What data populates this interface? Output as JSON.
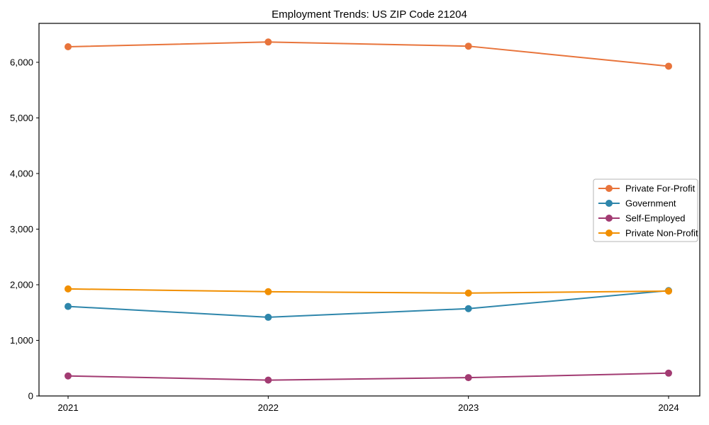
{
  "chart_data": {
    "type": "line",
    "title": "Employment Trends: US ZIP Code 21204",
    "xlabel": "",
    "ylabel": "",
    "x": [
      2021,
      2022,
      2023,
      2024
    ],
    "x_tick_labels": [
      "2021",
      "2022",
      "2023",
      "2024"
    ],
    "y_ticks": [
      0,
      1000,
      2000,
      3000,
      4000,
      5000,
      6000
    ],
    "y_tick_labels": [
      "0",
      "1,000",
      "2,000",
      "3,000",
      "4,000",
      "5,000",
      "6,000"
    ],
    "ylim": [
      0,
      6700
    ],
    "grid": false,
    "legend_position": "center-right",
    "marker": "circle",
    "series": [
      {
        "name": "Private For-Profit",
        "color": "#E8743B",
        "values": [
          6280,
          6365,
          6290,
          5930
        ]
      },
      {
        "name": "Government",
        "color": "#2E86AB",
        "values": [
          1610,
          1415,
          1570,
          1895
        ]
      },
      {
        "name": "Self-Employed",
        "color": "#A23B72",
        "values": [
          360,
          285,
          330,
          410
        ]
      },
      {
        "name": "Private Non-Profit",
        "color": "#F18F01",
        "values": [
          1925,
          1875,
          1850,
          1885
        ]
      }
    ]
  }
}
